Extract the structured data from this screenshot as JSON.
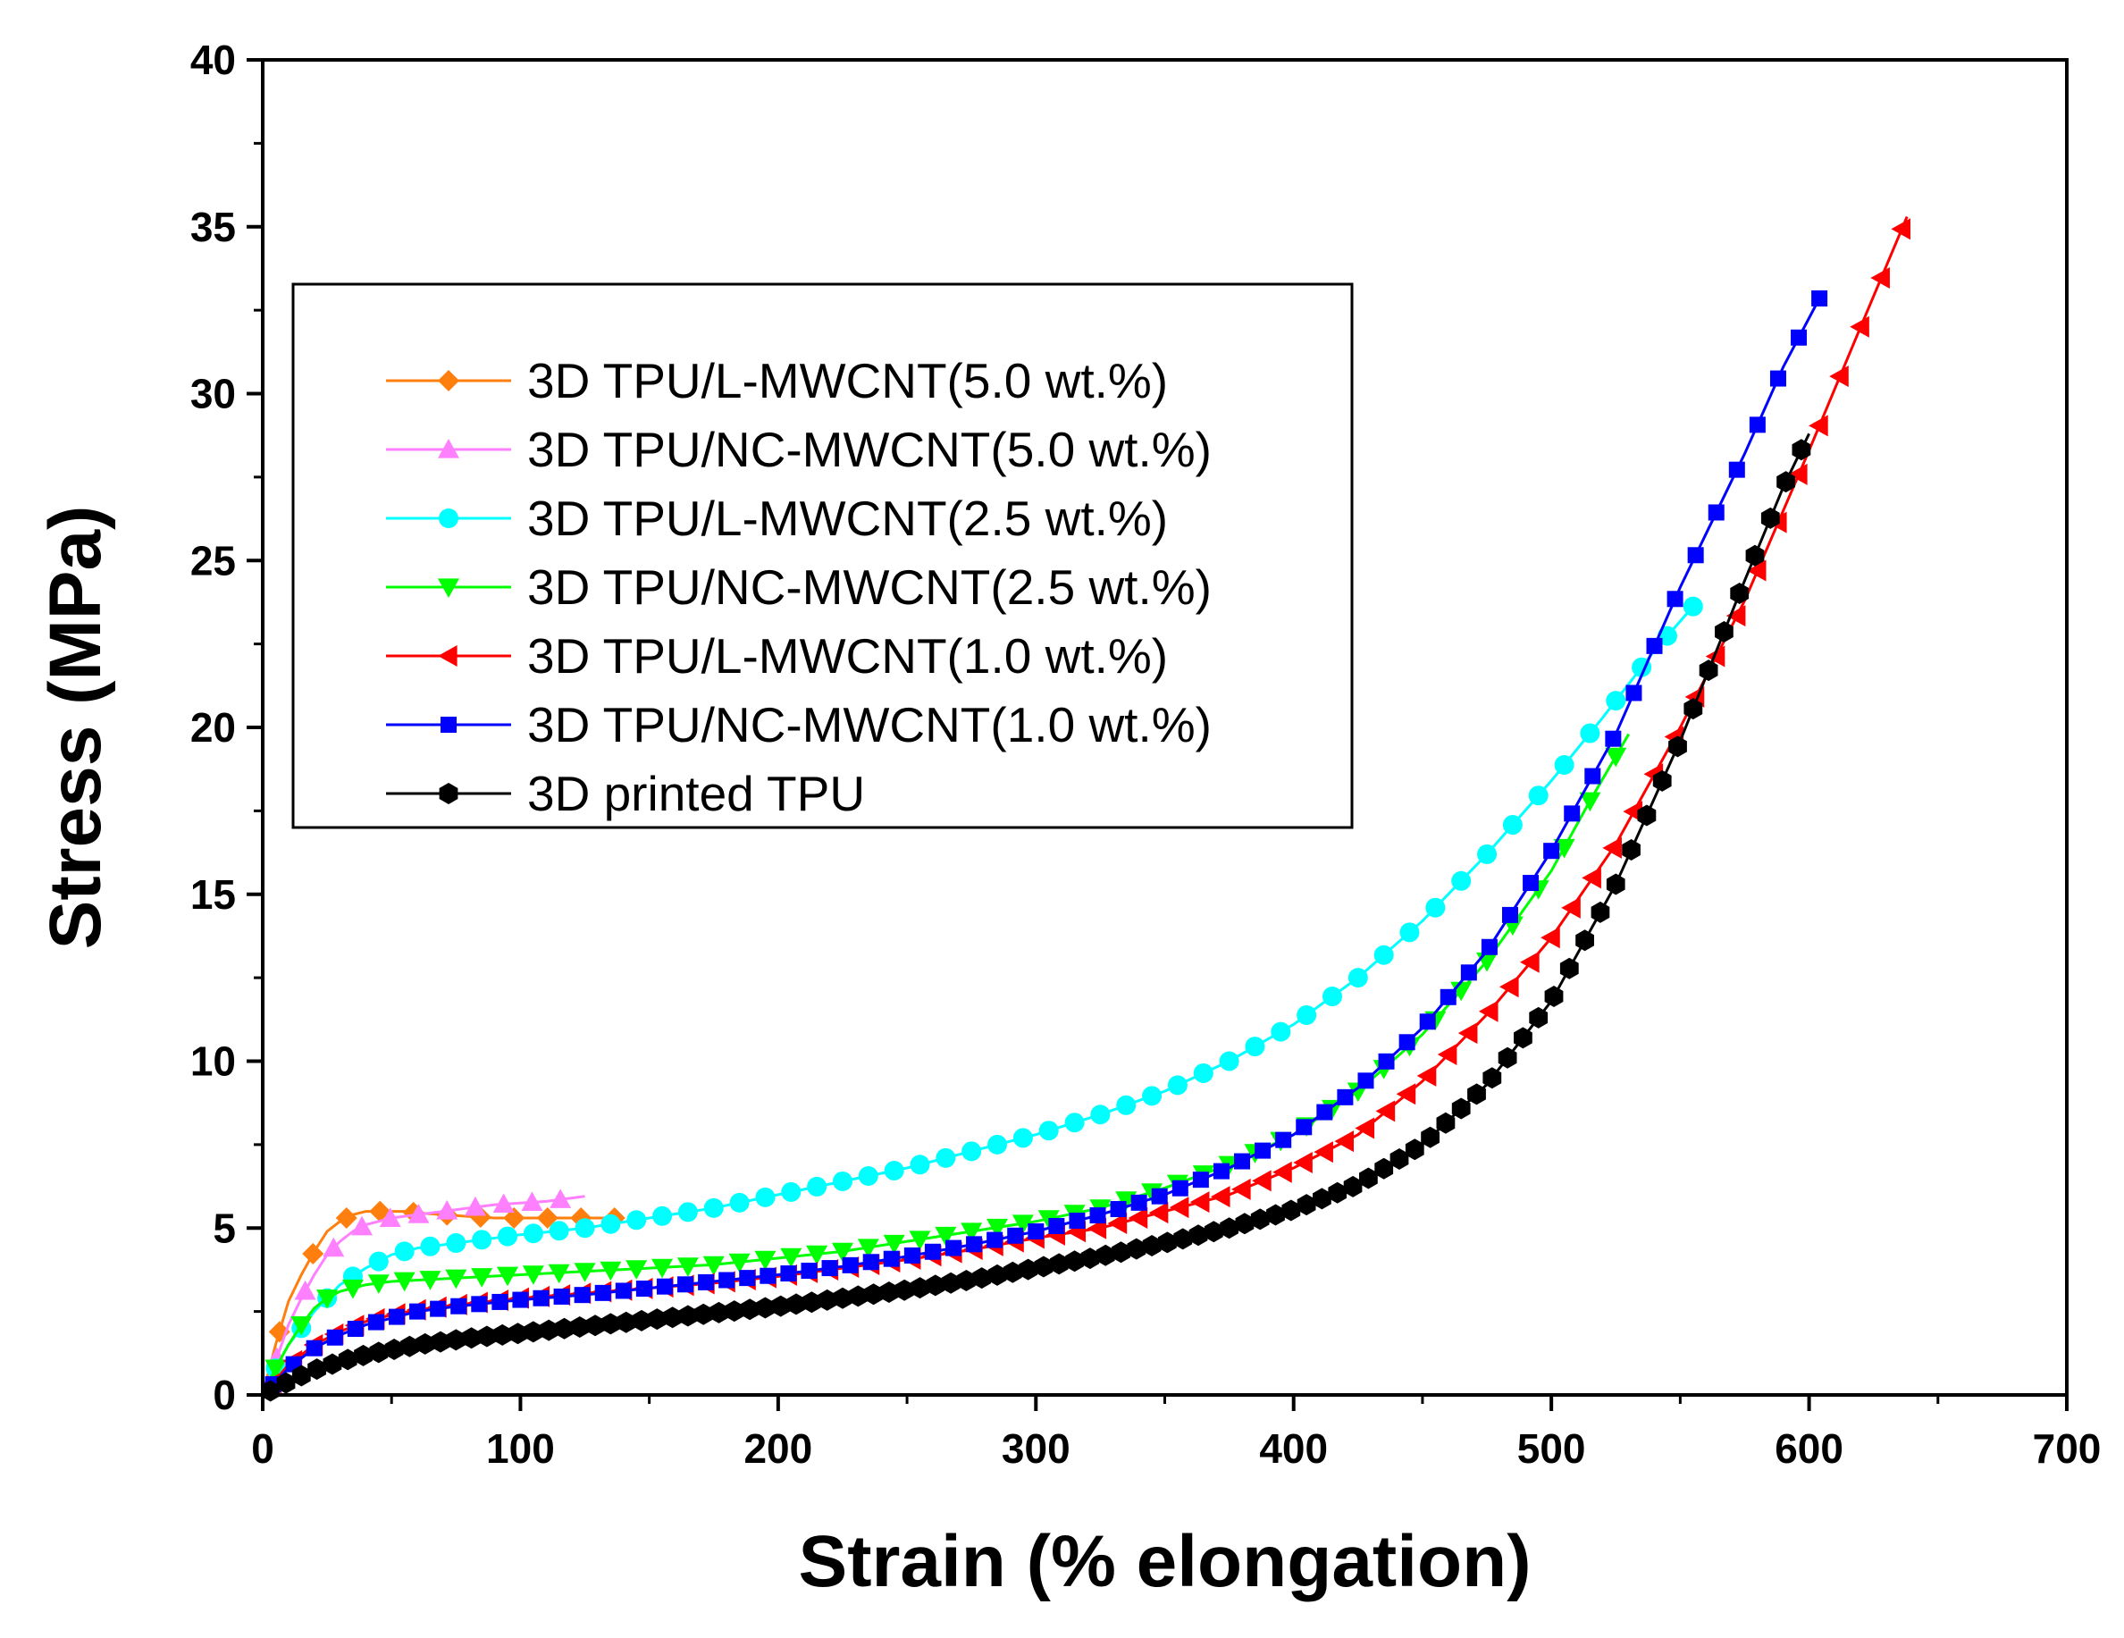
{
  "chart_data": {
    "type": "line",
    "xlabel": "Strain (% elongation)",
    "ylabel": "Stress (MPa)",
    "xlim": [
      0,
      700
    ],
    "ylim": [
      0,
      40
    ],
    "xticks": [
      "0",
      "100",
      "200",
      "300",
      "400",
      "500",
      "600",
      "700"
    ],
    "yticks": [
      "0",
      "5",
      "10",
      "15",
      "20",
      "25",
      "30",
      "35",
      "40"
    ],
    "grid": false,
    "legend_position": "upper-left",
    "series": [
      {
        "name": "3D TPU/L-MWCNT(5.0 wt.%)",
        "color": "#ff7f0e",
        "marker": "diamond",
        "marker_step": 13,
        "x": [
          0,
          5,
          10,
          15,
          20,
          25,
          30,
          35,
          40,
          45,
          50,
          55,
          60,
          70,
          80,
          90,
          100,
          110,
          120,
          130,
          140
        ],
        "y": [
          0,
          1.5,
          2.8,
          3.6,
          4.3,
          4.9,
          5.2,
          5.4,
          5.5,
          5.5,
          5.5,
          5.5,
          5.45,
          5.4,
          5.35,
          5.3,
          5.3,
          5.3,
          5.3,
          5.3,
          5.3
        ]
      },
      {
        "name": "3D TPU/NC-MWCNT(5.0 wt.%)",
        "color": "#ff80ff",
        "marker": "triangle-up",
        "marker_step": 11,
        "x": [
          0,
          5,
          10,
          15,
          20,
          25,
          30,
          35,
          40,
          45,
          50,
          60,
          70,
          80,
          90,
          100,
          110,
          120,
          125
        ],
        "y": [
          0,
          1.0,
          2.1,
          2.9,
          3.6,
          4.2,
          4.6,
          4.9,
          5.1,
          5.2,
          5.3,
          5.4,
          5.5,
          5.6,
          5.7,
          5.75,
          5.8,
          5.9,
          5.95
        ]
      },
      {
        "name": "3D TPU/L-MWCNT(2.5 wt.%)",
        "color": "#00ffff",
        "marker": "circle",
        "marker_step": 10,
        "x": [
          0,
          5,
          10,
          20,
          30,
          40,
          50,
          60,
          80,
          100,
          125,
          150,
          175,
          200,
          225,
          250,
          275,
          300,
          325,
          350,
          375,
          400,
          425,
          450,
          475,
          500,
          520,
          540,
          557
        ],
        "y": [
          0,
          0.8,
          1.5,
          2.5,
          3.3,
          3.8,
          4.2,
          4.4,
          4.6,
          4.8,
          5.0,
          5.3,
          5.6,
          6.0,
          6.4,
          6.8,
          7.3,
          7.8,
          8.4,
          9.1,
          10.0,
          11.1,
          12.5,
          14.2,
          16.2,
          18.4,
          20.3,
          22.3,
          23.8
        ]
      },
      {
        "name": "3D TPU/NC-MWCNT(2.5 wt.%)",
        "color": "#00ff00",
        "marker": "triangle-down",
        "marker_step": 10,
        "x": [
          0,
          5,
          10,
          15,
          20,
          25,
          30,
          40,
          50,
          75,
          100,
          125,
          150,
          175,
          200,
          225,
          250,
          275,
          300,
          325,
          350,
          375,
          400,
          425,
          450,
          475,
          500,
          515,
          530
        ],
        "y": [
          0,
          0.8,
          1.5,
          2.1,
          2.6,
          2.9,
          3.1,
          3.3,
          3.4,
          3.5,
          3.6,
          3.7,
          3.8,
          3.9,
          4.1,
          4.3,
          4.6,
          4.9,
          5.2,
          5.6,
          6.2,
          6.9,
          7.8,
          9.1,
          10.8,
          13.0,
          15.7,
          17.8,
          19.8
        ]
      },
      {
        "name": "3D TPU/L-MWCNT(1.0 wt.%)",
        "color": "#ff0000",
        "marker": "triangle-left",
        "marker_step": 8,
        "x": [
          0,
          10,
          20,
          30,
          40,
          50,
          60,
          75,
          100,
          125,
          150,
          175,
          200,
          225,
          250,
          275,
          300,
          325,
          350,
          375,
          400,
          425,
          450,
          475,
          500,
          525,
          550,
          575,
          600,
          620,
          638
        ],
        "y": [
          0,
          0.9,
          1.5,
          1.9,
          2.2,
          2.4,
          2.55,
          2.7,
          2.9,
          3.05,
          3.2,
          3.35,
          3.55,
          3.8,
          4.05,
          4.35,
          4.7,
          5.0,
          5.5,
          6.0,
          6.8,
          7.8,
          9.4,
          11.4,
          13.7,
          16.5,
          20.0,
          23.8,
          28.3,
          32.0,
          35.3
        ]
      },
      {
        "name": "3D TPU/NC-MWCNT(1.0 wt.%)",
        "color": "#0000ff",
        "marker": "square",
        "marker_step": 8,
        "x": [
          0,
          10,
          20,
          30,
          40,
          50,
          60,
          75,
          100,
          125,
          150,
          175,
          200,
          225,
          250,
          275,
          300,
          325,
          350,
          375,
          400,
          425,
          450,
          475,
          500,
          525,
          550,
          575,
          590,
          605
        ],
        "y": [
          0,
          0.8,
          1.4,
          1.8,
          2.1,
          2.3,
          2.5,
          2.65,
          2.85,
          3.0,
          3.2,
          3.4,
          3.6,
          3.85,
          4.15,
          4.5,
          4.9,
          5.4,
          6.0,
          6.8,
          7.8,
          9.2,
          11.0,
          13.3,
          16.3,
          19.8,
          24.2,
          28.2,
          30.8,
          33.0
        ]
      },
      {
        "name": "3D printed TPU",
        "color": "#000000",
        "marker": "hexagon",
        "marker_step": 6,
        "x": [
          0,
          10,
          20,
          30,
          40,
          50,
          60,
          80,
          100,
          125,
          150,
          175,
          200,
          225,
          250,
          275,
          300,
          325,
          350,
          375,
          400,
          425,
          450,
          475,
          500,
          525,
          550,
          575,
          590,
          600
        ],
        "y": [
          0,
          0.4,
          0.75,
          1.0,
          1.2,
          1.35,
          1.5,
          1.7,
          1.85,
          2.05,
          2.25,
          2.45,
          2.65,
          2.9,
          3.15,
          3.45,
          3.8,
          4.15,
          4.55,
          5.0,
          5.55,
          6.3,
          7.5,
          9.3,
          11.8,
          15.3,
          19.6,
          24.4,
          27.2,
          28.8
        ]
      }
    ]
  }
}
